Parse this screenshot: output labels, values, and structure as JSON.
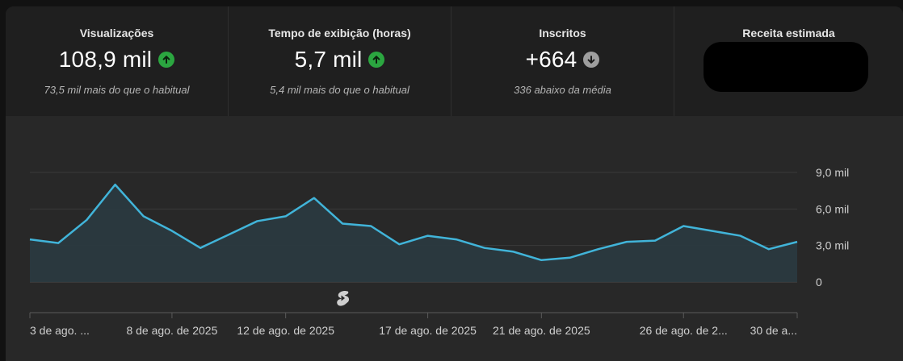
{
  "metrics": [
    {
      "title": "Visualizações",
      "value": "108,9 mil",
      "trend": "up",
      "subtitle": "73,5 mil mais do que o habitual"
    },
    {
      "title": "Tempo de exibição (horas)",
      "value": "5,7 mil",
      "trend": "up",
      "subtitle": "5,4 mil mais do que o habitual"
    },
    {
      "title": "Inscritos",
      "value": "+664",
      "trend": "down",
      "subtitle": "336 abaixo da média"
    },
    {
      "title": "Receita estimada",
      "value": "",
      "trend": "",
      "subtitle": ""
    }
  ],
  "colors": {
    "line": "#41b4d9",
    "fill": "#2a3a40",
    "up": "#2ba640",
    "down": "#9e9e9e"
  },
  "chart_data": {
    "type": "area",
    "x": [
      "3 de ago.",
      "4 de ago.",
      "5 de ago.",
      "6 de ago.",
      "7 de ago.",
      "8 de ago.",
      "9 de ago.",
      "10 de ago.",
      "11 de ago.",
      "12 de ago.",
      "13 de ago.",
      "14 de ago.",
      "15 de ago.",
      "16 de ago.",
      "17 de ago.",
      "18 de ago.",
      "19 de ago.",
      "20 de ago.",
      "21 de ago.",
      "22 de ago.",
      "23 de ago.",
      "24 de ago.",
      "25 de ago.",
      "26 de ago.",
      "27 de ago.",
      "28 de ago.",
      "29 de ago.",
      "30 de ago."
    ],
    "values": [
      3.5,
      3.2,
      5.1,
      8.0,
      5.4,
      4.2,
      2.8,
      3.9,
      5.0,
      5.4,
      6.9,
      4.8,
      4.6,
      3.1,
      3.8,
      3.5,
      2.8,
      2.5,
      1.8,
      2.0,
      2.7,
      3.3,
      3.4,
      4.6,
      4.2,
      3.8,
      2.7,
      3.3
    ],
    "y_ticks": [
      "9,0 mil",
      "6,0 mil",
      "3,0 mil",
      "0"
    ],
    "y_tick_values": [
      9,
      6,
      3,
      0
    ],
    "ylim": [
      0,
      9
    ],
    "x_tick_labels": [
      "3 de ago. ...",
      "8 de ago. de 2025",
      "12 de ago. de 2025",
      "17 de ago. de 2025",
      "21 de ago. de 2025",
      "26 de ago. de 2...",
      "30 de a..."
    ],
    "x_tick_indices": [
      0,
      5,
      9,
      14,
      18,
      23,
      27
    ],
    "markers": [
      {
        "icon": "shorts-icon",
        "index": 11
      }
    ]
  }
}
